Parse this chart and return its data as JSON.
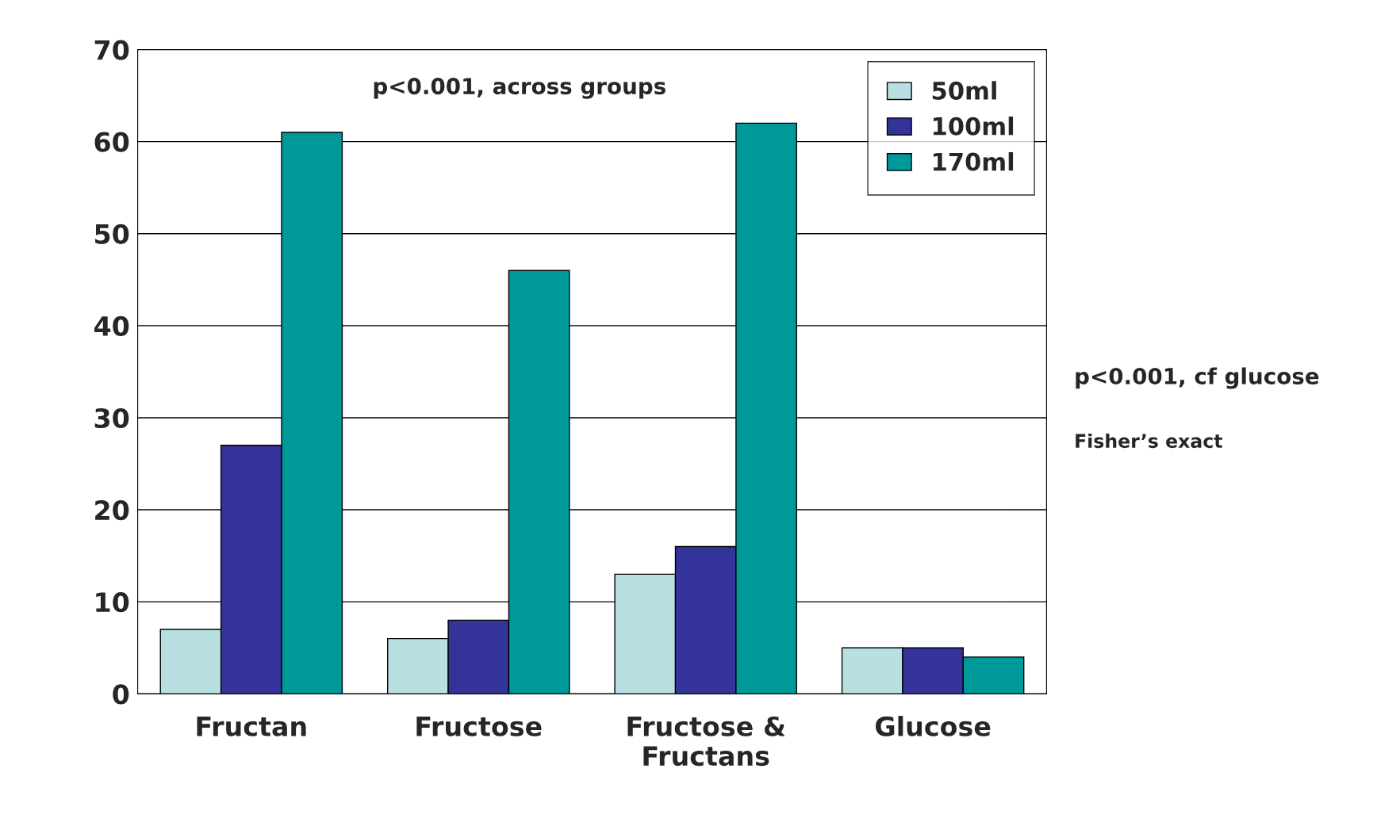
{
  "chart_data": {
    "type": "bar",
    "categories": [
      "Fructan",
      "Fructose",
      "Fructose &\nFructans",
      "Glucose"
    ],
    "series": [
      {
        "name": "50ml",
        "color": "#b8e0e3",
        "values": [
          7,
          6,
          13,
          5
        ]
      },
      {
        "name": "100ml",
        "color": "#333399",
        "values": [
          27,
          8,
          16,
          5
        ]
      },
      {
        "name": "170ml",
        "color": "#009999",
        "values": [
          61,
          46,
          62,
          4
        ]
      }
    ],
    "ylim": [
      0,
      70
    ],
    "yticks": [
      0,
      10,
      20,
      30,
      40,
      50,
      60,
      70
    ],
    "grid": "y",
    "legend": "top right",
    "annotations": [
      "p<0.001, across groups",
      "p<0.001, cf glucose",
      "Fisher’s exact"
    ]
  }
}
